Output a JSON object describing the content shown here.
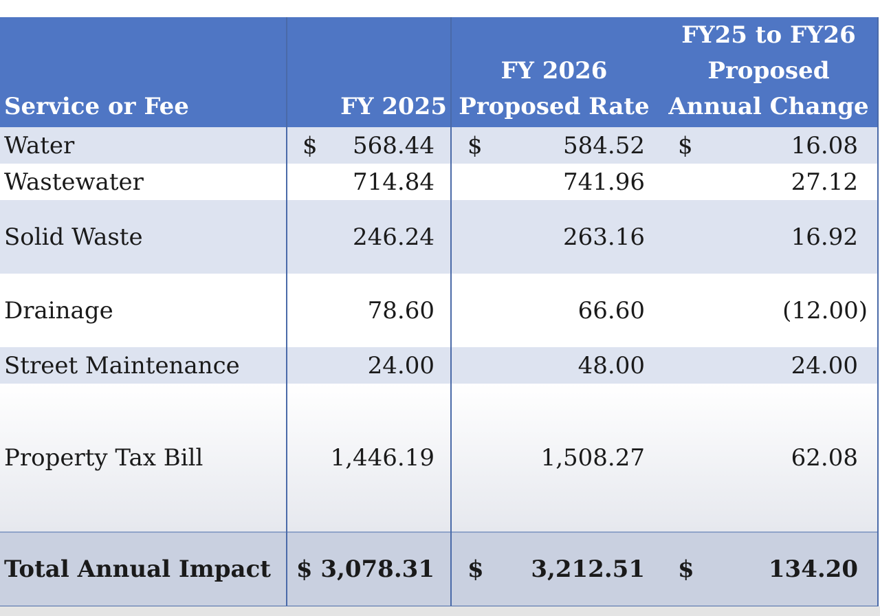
{
  "table": {
    "headers": {
      "service": "Service or Fee",
      "fy2025": "FY 2025",
      "fy2026_line1": "FY 2026",
      "fy2026_line2": "Proposed Rate",
      "change_line1": "FY25 to FY26",
      "change_line2": "Proposed",
      "change_line3": "Annual Change"
    },
    "rows": [
      {
        "service": "Water",
        "cur1": "$",
        "fy2025": "568.44",
        "cur2": "$",
        "fy2026": "584.52",
        "cur3": "$",
        "change": "16.08"
      },
      {
        "service": "Wastewater",
        "fy2025": "714.84",
        "fy2026": "741.96",
        "change": "27.12"
      },
      {
        "service": "Solid Waste",
        "fy2025": "246.24",
        "fy2026": "263.16",
        "change": "16.92"
      },
      {
        "service": "Drainage",
        "fy2025": "78.60",
        "fy2026": "66.60",
        "change": "(12.00)"
      },
      {
        "service": "Street Maintenance",
        "fy2025": "24.00",
        "fy2026": "48.00",
        "change": "24.00"
      },
      {
        "service": "Property Tax Bill",
        "fy2025": "1,446.19",
        "fy2026": "1,508.27",
        "change": "62.08"
      }
    ],
    "total": {
      "service": "Total Annual Impact",
      "fy2025": "$ 3,078.31",
      "cur2": "$",
      "fy2026": "3,212.51",
      "cur3": "$",
      "change": "134.20"
    }
  }
}
